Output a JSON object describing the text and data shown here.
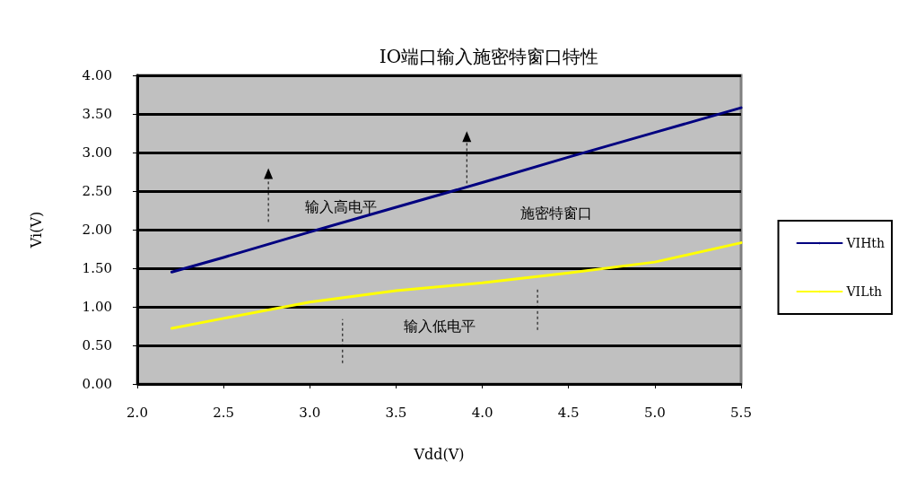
{
  "chart_data": {
    "type": "line",
    "title": "IO端口输入施密特窗口特性",
    "xlabel": "Vdd(V)",
    "ylabel": "Vi(V)",
    "xlim": [
      2.0,
      5.5
    ],
    "xticks": [
      {
        "value": 2.0,
        "label": "2.0"
      },
      {
        "value": 2.5,
        "label": "2.5"
      },
      {
        "value": 3.0,
        "label": "3.0"
      },
      {
        "value": 3.5,
        "label": "3.5"
      },
      {
        "value": 4.0,
        "label": "4.0"
      },
      {
        "value": 4.5,
        "label": "4.5"
      },
      {
        "value": 5.0,
        "label": "5.0"
      },
      {
        "value": 5.5,
        "label": "5.5"
      }
    ],
    "ylim": [
      0,
      4
    ],
    "yticks": [
      {
        "value": 0,
        "label": "0.00"
      },
      {
        "value": 0.5,
        "label": "0.50"
      },
      {
        "value": 1,
        "label": "1.00"
      },
      {
        "value": 1.5,
        "label": "1.50"
      },
      {
        "value": 2,
        "label": "2.00"
      },
      {
        "value": 2.5,
        "label": "2.50"
      },
      {
        "value": 3,
        "label": "3.00"
      },
      {
        "value": 3.5,
        "label": "3.50"
      },
      {
        "value": 4,
        "label": "4.00"
      }
    ],
    "x": [
      2.2,
      2.5,
      3.0,
      3.5,
      4.0,
      4.5,
      5.0,
      5.5
    ],
    "series": [
      {
        "name": "VIHth",
        "color": "#000080",
        "values": [
          1.45,
          1.64,
          1.97,
          2.29,
          2.61,
          2.94,
          3.26,
          3.58
        ]
      },
      {
        "name": "VILth",
        "color": "#ffff00",
        "values": [
          0.72,
          0.85,
          1.06,
          1.21,
          1.31,
          1.44,
          1.58,
          1.83
        ]
      }
    ],
    "annotations": [
      "输入高电平",
      "施密特窗口",
      "输入低电平"
    ],
    "grid": "y",
    "legend": "right",
    "marker": "none",
    "line_style": "solid"
  }
}
